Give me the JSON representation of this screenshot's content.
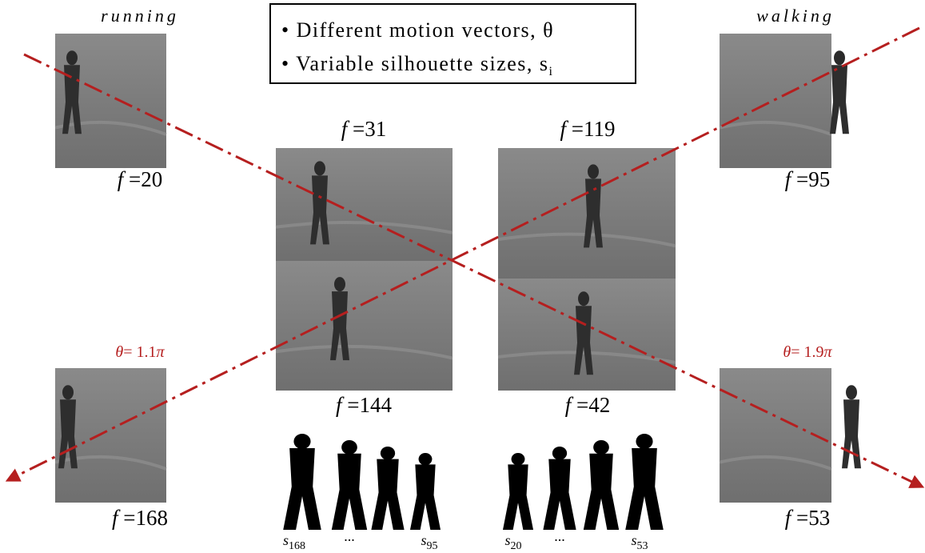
{
  "header": {
    "left_label": "running",
    "right_label": "walking"
  },
  "legend_box": {
    "items": [
      {
        "text": "Different motion vectors, θ"
      },
      {
        "text": "Variable silhouette sizes, s",
        "subscript": "i"
      }
    ]
  },
  "frames": [
    {
      "variable": "f",
      "equals": "=",
      "number": "20"
    },
    {
      "variable": "f",
      "equals": "=",
      "number": "95"
    },
    {
      "variable": "f",
      "equals": "=",
      "number": "31"
    },
    {
      "variable": "f",
      "equals": "=",
      "number": "119"
    },
    {
      "variable": "f",
      "equals": "=",
      "number": "144"
    },
    {
      "variable": "f",
      "equals": "=",
      "number": "42"
    },
    {
      "variable": "f",
      "equals": "=",
      "number": "168"
    },
    {
      "variable": "f",
      "equals": "=",
      "number": "53"
    }
  ],
  "angles": [
    {
      "symbol": "θ",
      "equals": "=",
      "value": "1.1",
      "constant": "π"
    },
    {
      "symbol": "θ",
      "equals": "=",
      "value": "1.9",
      "constant": "π"
    }
  ],
  "silhouettes": {
    "groups": [
      {
        "first": {
          "symbol": "s",
          "subscript": "168"
        },
        "ellipsis": "...",
        "last": {
          "symbol": "s",
          "subscript": "95"
        }
      },
      {
        "first": {
          "symbol": "s",
          "subscript": "20"
        },
        "ellipsis": "...",
        "last": {
          "symbol": "s",
          "subscript": "53"
        }
      }
    ]
  }
}
